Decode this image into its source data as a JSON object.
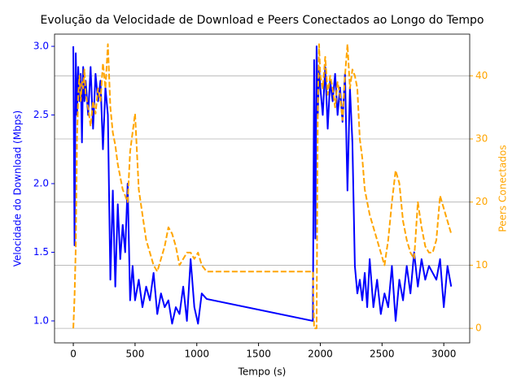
{
  "chart_data": {
    "type": "line",
    "title": "Evolução da Velocidade de Download e Peers Conectados ao Longo do Tempo",
    "x_label": "Tempo (s)",
    "y_label": "Velocidade do Download (Mbps)",
    "y2_label": "Peers Conectados",
    "x": [
      0,
      10,
      20,
      30,
      40,
      50,
      60,
      70,
      80,
      90,
      100,
      120,
      140,
      160,
      180,
      200,
      220,
      240,
      260,
      280,
      300,
      320,
      340,
      360,
      380,
      400,
      420,
      440,
      460,
      480,
      500,
      530,
      560,
      590,
      620,
      650,
      680,
      710,
      740,
      770,
      800,
      830,
      860,
      890,
      920,
      950,
      980,
      1010,
      1040,
      1080,
      1940,
      1950,
      1960,
      1970,
      1980,
      1990,
      2000,
      2020,
      2040,
      2060,
      2080,
      2100,
      2120,
      2140,
      2160,
      2180,
      2200,
      2220,
      2240,
      2260,
      2280,
      2300,
      2320,
      2340,
      2360,
      2380,
      2400,
      2430,
      2460,
      2490,
      2520,
      2550,
      2580,
      2610,
      2640,
      2670,
      2700,
      2730,
      2760,
      2790,
      2820,
      2850,
      2880,
      2910,
      2940,
      2970,
      3000,
      3030,
      3060
    ],
    "series": [
      {
        "name": "Velocidade do Download (Mbps)",
        "color": "#0000ff",
        "axis": "y",
        "dashed": false,
        "values": [
          3.0,
          1.55,
          2.95,
          2.5,
          2.85,
          2.6,
          2.8,
          2.3,
          2.85,
          2.6,
          2.75,
          2.5,
          2.85,
          2.4,
          2.8,
          2.6,
          2.75,
          2.25,
          2.7,
          2.5,
          1.3,
          1.95,
          1.25,
          1.85,
          1.45,
          1.7,
          1.5,
          2.0,
          1.15,
          1.4,
          1.15,
          1.3,
          1.1,
          1.25,
          1.15,
          1.35,
          1.05,
          1.2,
          1.1,
          1.15,
          0.98,
          1.1,
          1.05,
          1.25,
          1.0,
          1.45,
          1.1,
          0.98,
          1.2,
          1.16,
          1.0,
          2.9,
          1.6,
          3.0,
          2.5,
          2.85,
          2.7,
          2.5,
          2.85,
          2.4,
          2.75,
          2.6,
          2.8,
          2.5,
          2.7,
          2.45,
          2.8,
          1.95,
          2.7,
          2.3,
          1.4,
          1.2,
          1.3,
          1.15,
          1.35,
          1.1,
          1.45,
          1.1,
          1.3,
          1.05,
          1.2,
          1.1,
          1.4,
          1.0,
          1.3,
          1.15,
          1.4,
          1.2,
          1.5,
          1.25,
          1.45,
          1.3,
          1.4,
          1.35,
          1.3,
          1.45,
          1.1,
          1.4,
          1.25
        ]
      },
      {
        "name": "Peers Conectados",
        "color": "#ffa500",
        "axis": "y2",
        "dashed": true,
        "values": [
          0,
          5,
          13,
          30,
          37,
          40,
          36,
          39,
          38,
          41,
          37,
          35,
          32,
          36,
          34,
          38,
          36,
          42,
          38,
          45,
          35,
          31,
          29,
          26,
          24,
          22,
          21,
          20,
          28,
          31,
          34,
          22,
          18,
          14,
          12,
          10,
          9,
          11,
          13,
          16,
          15,
          13,
          10,
          11,
          12,
          12,
          11,
          12,
          10,
          9,
          9,
          0,
          0,
          0,
          35,
          45,
          40,
          38,
          43,
          37,
          40,
          38,
          35,
          39,
          37,
          33,
          40,
          45,
          38,
          41,
          40,
          38,
          30,
          27,
          22,
          20,
          18,
          16,
          14,
          12,
          10,
          14,
          20,
          25,
          23,
          17,
          14,
          12,
          11,
          20,
          16,
          13,
          12,
          12,
          14,
          21,
          19,
          17,
          15
        ]
      }
    ],
    "xlim": [
      -152,
      3210
    ],
    "xticks": [
      0,
      500,
      1000,
      1500,
      2000,
      2500,
      3000
    ],
    "ylim": [
      0.84,
      3.089
    ],
    "yticks": [
      {
        "value": 1.0,
        "label": "1.0"
      },
      {
        "value": 1.5,
        "label": "1.5"
      },
      {
        "value": 2.0,
        "label": "2.0"
      },
      {
        "value": 2.5,
        "label": "2.5"
      },
      {
        "value": 3.0,
        "label": "3.0"
      }
    ],
    "y2lim": [
      -2.3,
      46.6
    ],
    "y2ticks": [
      0,
      10,
      20,
      30,
      40
    ],
    "grid": "y2"
  }
}
